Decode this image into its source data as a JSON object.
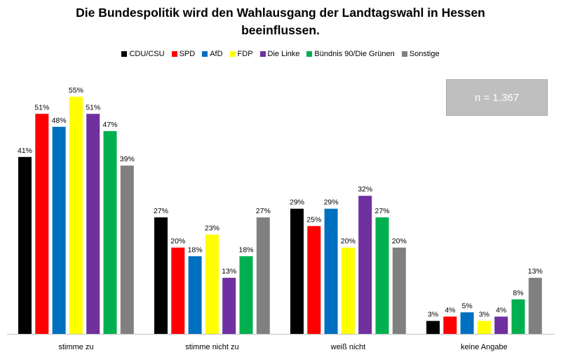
{
  "title_line1": "Die Bundespolitik wird den Wahlausgang der Landtagswahl in Hessen",
  "title_line2": "beeinflussen.",
  "sample_note": "n = 1.367",
  "chart_data": {
    "type": "bar",
    "title": "Die Bundespolitik wird den Wahlausgang der Landtagswahl in Hessen beeinflussen.",
    "categories": [
      "stimme zu",
      "stimme nicht zu",
      "weiß nicht",
      "keine Angabe"
    ],
    "series": [
      {
        "name": "CDU/CSU",
        "color": "#000000",
        "values": [
          41,
          27,
          29,
          3
        ]
      },
      {
        "name": "SPD",
        "color": "#ff0000",
        "values": [
          51,
          20,
          25,
          4
        ]
      },
      {
        "name": "AfD",
        "color": "#0070c0",
        "values": [
          48,
          18,
          29,
          5
        ]
      },
      {
        "name": "FDP",
        "color": "#ffff00",
        "values": [
          55,
          23,
          20,
          3
        ]
      },
      {
        "name": "Die Linke",
        "color": "#7030a0",
        "values": [
          51,
          13,
          32,
          4
        ]
      },
      {
        "name": "Bündnis 90/Die Grünen",
        "color": "#00b050",
        "values": [
          47,
          18,
          27,
          8
        ]
      },
      {
        "name": "Sonstige",
        "color": "#808080",
        "values": [
          39,
          27,
          20,
          13
        ]
      }
    ],
    "value_suffix": "%",
    "ylim": [
      0,
      60
    ],
    "grid": false,
    "legend_position": "top",
    "xlabel": "",
    "ylabel": ""
  }
}
